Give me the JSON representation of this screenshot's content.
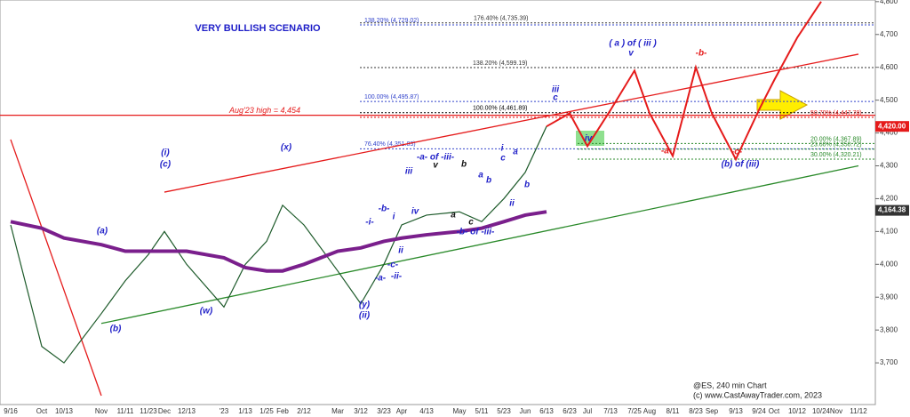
{
  "chart_data": {
    "type": "line",
    "title": "VERY BULLISH SCENARIO",
    "footer": [
      "@ES, 240 min Chart",
      "(c) www.CastAwayTrader.com, 2023"
    ],
    "categories": [
      "9/16",
      "Oct",
      "10/13",
      "Nov",
      "11/11",
      "11/23",
      "Dec",
      "12/13",
      "'23",
      "1/13",
      "1/25",
      "Feb",
      "2/12",
      "Mar",
      "3/12",
      "3/23",
      "Apr",
      "4/13",
      "May",
      "5/11",
      "5/23",
      "Jun",
      "6/13",
      "6/23",
      "Jul",
      "7/13",
      "7/25",
      "Aug",
      "8/11",
      "8/23",
      "Sep",
      "9/13",
      "9/24",
      "Oct",
      "10/12",
      "10/24",
      "Nov",
      "11/12"
    ],
    "series": [
      {
        "name": "ES",
        "color": "#1d5a2a",
        "values": [
          4120,
          3750,
          3700,
          3850,
          3950,
          4030,
          4100,
          4000,
          3870,
          4000,
          4070,
          4180,
          4120,
          3980,
          3880,
          4000,
          4120,
          4150,
          4160,
          4130,
          4200,
          4280,
          4420,
          null,
          null,
          null,
          null,
          null,
          null,
          null,
          null,
          null,
          null,
          null,
          null,
          null,
          null,
          null
        ]
      },
      {
        "name": "MA",
        "color": "#7a1f8c",
        "values": [
          4130,
          4110,
          4080,
          4060,
          4040,
          4040,
          4040,
          4040,
          4020,
          3990,
          3980,
          3980,
          4000,
          4040,
          4050,
          4070,
          4080,
          4090,
          4100,
          4110,
          4130,
          4150,
          4160,
          null,
          null,
          null,
          null,
          null,
          null,
          null,
          null,
          null,
          null,
          null,
          null,
          null,
          null,
          null
        ]
      },
      {
        "name": "Projection",
        "color": "#e51b1b",
        "values": [
          null,
          null,
          null,
          null,
          null,
          null,
          null,
          null,
          null,
          null,
          null,
          null,
          null,
          null,
          null,
          null,
          null,
          null,
          null,
          null,
          null,
          null,
          4420,
          4460,
          4360,
          4470,
          4590,
          4460,
          4330,
          4600,
          4460,
          4320,
          4470,
          4560,
          4690,
          4800,
          null,
          null
        ]
      }
    ],
    "trendlines": [
      {
        "color": "#2a8a2a",
        "x": [
          "Nov",
          "11/12"
        ],
        "values": [
          3820,
          4300
        ]
      },
      {
        "color": "#e51b1b",
        "x": [
          "Dec",
          "11/12"
        ],
        "values": [
          4220,
          4640
        ]
      },
      {
        "color": "#e51b1b",
        "x": [
          "9/16",
          "Nov"
        ],
        "values": [
          4380,
          3600
        ]
      }
    ],
    "levels": [
      {
        "label": "176.40% (4,735.39)",
        "value": 4735.39,
        "color": "#333333"
      },
      {
        "label": "138.20% (4,729.02)",
        "value": 4729.02,
        "color": "#3344cc"
      },
      {
        "label": "138.20% (4,599.19)",
        "value": 4599.19,
        "color": "#333333"
      },
      {
        "label": "100.00% (4,495.87)",
        "value": 4495.87,
        "color": "#3344cc"
      },
      {
        "label": "100.00% (4,461.89)",
        "value": 4461.89,
        "color": "#000000"
      },
      {
        "label": "Aug'23 high = 4,454",
        "value": 4454,
        "color": "#e51b1b"
      },
      {
        "label": "50.70% (4,447.78)",
        "value": 4447.78,
        "color": "#e51b1b"
      },
      {
        "label": "20.00% (4,367.89)",
        "value": 4367.89,
        "color": "#2a8a2a"
      },
      {
        "label": "76.40% (4,351.83)",
        "value": 4351.83,
        "color": "#3344cc"
      },
      {
        "label": "23.60% (4,350.72)",
        "value": 4350.72,
        "color": "#2a8a2a"
      },
      {
        "label": "30.00% (4,320.21)",
        "value": 4320.21,
        "color": "#2a8a2a"
      }
    ],
    "price_tags": [
      {
        "value": 4420,
        "label": "4,420.00",
        "color": "#e51b1b"
      },
      {
        "value": 4164.38,
        "label": "4,164.38",
        "color": "#333333"
      }
    ],
    "wave_labels": [
      "(i)",
      "(c)",
      "(a)",
      "(b)",
      "(w)",
      "(x)",
      "(y)",
      "(ii)",
      "-a- of -iii-",
      "iii",
      "iv",
      "v",
      "b",
      "a",
      "c",
      "-b- of -iii-",
      "-b-",
      "-i-",
      "i",
      "ii",
      "-c-",
      "-a-",
      "-ii-",
      "i",
      "c",
      "a",
      "a",
      "b",
      "b",
      "ii",
      "iii",
      "c",
      "iv",
      "( a ) of ( iii )",
      "v",
      "-b-",
      "-a-",
      "-c-",
      "(b) of (iii)"
    ],
    "ylim": [
      3573,
      4805
    ],
    "yticks": [
      {
        "value": 3700,
        "label": "3,700"
      },
      {
        "value": 3800,
        "label": "3,800"
      },
      {
        "value": 3900,
        "label": "3,900"
      },
      {
        "value": 4000,
        "label": "4,000"
      },
      {
        "value": 4100,
        "label": "4,100"
      },
      {
        "value": 4200,
        "label": "4,200"
      },
      {
        "value": 4300,
        "label": "4,300"
      },
      {
        "value": 4400,
        "label": "4,400"
      },
      {
        "value": 4500,
        "label": "4,500"
      },
      {
        "value": 4600,
        "label": "4,600"
      },
      {
        "value": 4700,
        "label": "4,700"
      },
      {
        "value": 4800,
        "label": "4,800"
      }
    ]
  }
}
